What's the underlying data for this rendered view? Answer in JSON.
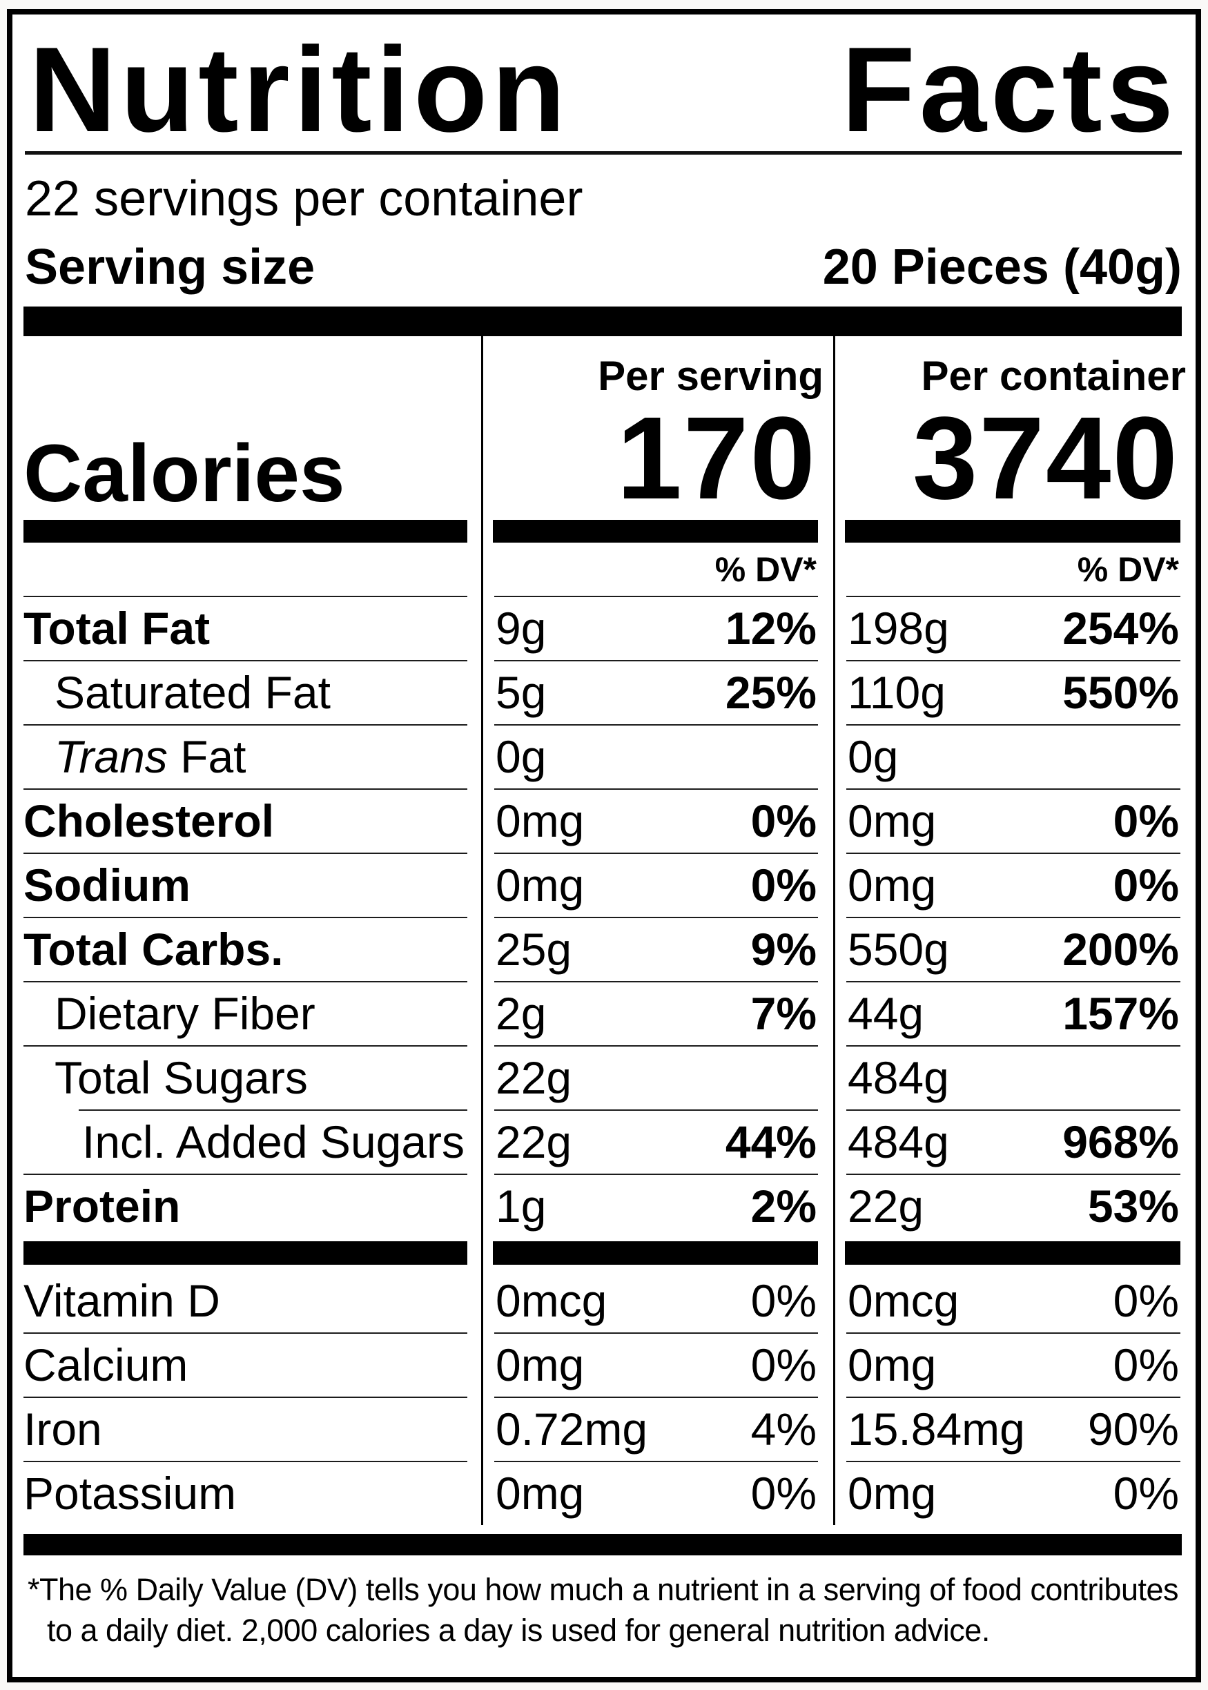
{
  "label": {
    "title_word_1": "Nutrition",
    "title_word_2": "Facts",
    "servings_per_container": "22 servings per container",
    "serving_size_label": "Serving size",
    "serving_size_value": "20 Pieces (40g)",
    "calories": {
      "label": "Calories",
      "serving_column_header": "Per serving",
      "container_column_header": "Per container",
      "per_serving": "170",
      "per_container": "3740",
      "dv_header": "% DV*"
    },
    "rows": [
      {
        "label": "Total Fat",
        "serving_amount": "9g",
        "serving_dv": "12%",
        "container_amount": "198g",
        "container_dv": "254%"
      },
      {
        "label": "Saturated Fat",
        "serving_amount": "5g",
        "serving_dv": "25%",
        "container_amount": "110g",
        "container_dv": "550%"
      },
      {
        "label_prefix_italic": "Trans",
        "label": "Fat",
        "serving_amount": "0g",
        "serving_dv": "",
        "container_amount": "0g",
        "container_dv": ""
      },
      {
        "label": "Cholesterol",
        "serving_amount": "0mg",
        "serving_dv": "0%",
        "container_amount": "0mg",
        "container_dv": "0%"
      },
      {
        "label": "Sodium",
        "serving_amount": "0mg",
        "serving_dv": "0%",
        "container_amount": "0mg",
        "container_dv": "0%"
      },
      {
        "label": "Total Carbs.",
        "serving_amount": "25g",
        "serving_dv": "9%",
        "container_amount": "550g",
        "container_dv": "200%"
      },
      {
        "label": "Dietary Fiber",
        "serving_amount": "2g",
        "serving_dv": "7%",
        "container_amount": "44g",
        "container_dv": "157%"
      },
      {
        "label": "Total Sugars",
        "serving_amount": "22g",
        "serving_dv": "",
        "container_amount": "484g",
        "container_dv": ""
      },
      {
        "label": "Incl. Added Sugars",
        "serving_amount": "22g",
        "serving_dv": "44%",
        "container_amount": "484g",
        "container_dv": "968%"
      },
      {
        "label": "Protein",
        "serving_amount": "1g",
        "serving_dv": "2%",
        "container_amount": "22g",
        "container_dv": "53%"
      },
      {
        "label": "Vitamin D",
        "serving_amount": "0mcg",
        "serving_dv": "0%",
        "container_amount": "0mcg",
        "container_dv": "0%"
      },
      {
        "label": "Calcium",
        "serving_amount": "0mg",
        "serving_dv": "0%",
        "container_amount": "0mg",
        "container_dv": "0%"
      },
      {
        "label": "Iron",
        "serving_amount": "0.72mg",
        "serving_dv": "4%",
        "container_amount": "15.84mg",
        "container_dv": "90%"
      },
      {
        "label": "Potassium",
        "serving_amount": "0mg",
        "serving_dv": "0%",
        "container_amount": "0mg",
        "container_dv": "0%"
      }
    ],
    "footnote": "*The % Daily Value (DV) tells you how much a nutrient in a serving of food contributes to a daily diet. 2,000 calories a day is used for general nutrition advice."
  },
  "colors": {
    "ink": "#000000",
    "background": "#ffffff",
    "page_background": "#faf9f7"
  }
}
